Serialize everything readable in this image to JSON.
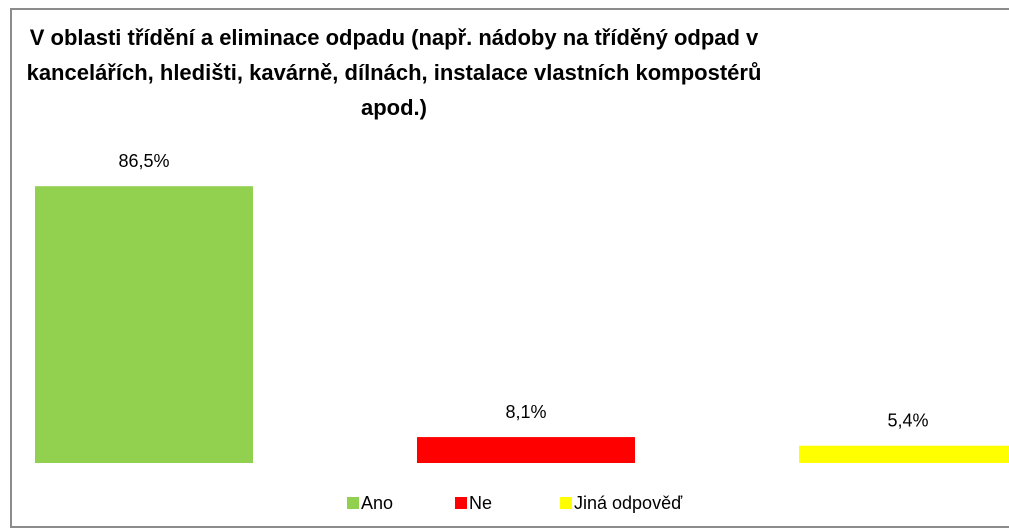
{
  "chart_data": {
    "type": "bar",
    "title": "V oblasti třídění a eliminace odpadu (např. nádoby na tříděný odpad v kancelářích, hledišti, kavárně, dílnách, instalace vlastních kompostérů apod.)",
    "series": [
      {
        "name": "Ano",
        "color": "#92d050",
        "values": [
          86.5
        ],
        "value_labels": [
          "86,5%"
        ]
      },
      {
        "name": "Ne",
        "color": "#ff0000",
        "values": [
          8.1
        ],
        "value_labels": [
          "8,1%"
        ]
      },
      {
        "name": "Jiná odpověď",
        "color": "#ffff00",
        "values": [
          5.4
        ],
        "value_labels": [
          "5,4%"
        ]
      }
    ],
    "ylim": [
      0,
      100
    ]
  }
}
